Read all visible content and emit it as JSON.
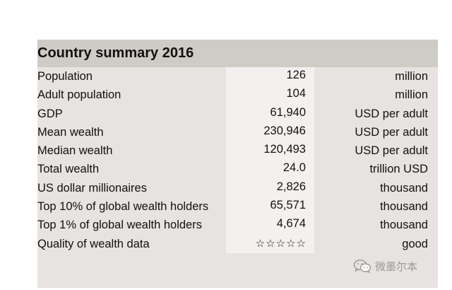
{
  "table": {
    "title": "Country summary 2016",
    "rows": [
      {
        "label": "Population",
        "value": "126",
        "unit": "million"
      },
      {
        "label": "Adult population",
        "value": "104",
        "unit": "million"
      },
      {
        "label": "GDP",
        "value": "61,940",
        "unit": "USD per adult"
      },
      {
        "label": "Mean wealth",
        "value": "230,946",
        "unit": "USD per adult"
      },
      {
        "label": "Median wealth",
        "value": "120,493",
        "unit": "USD per adult"
      },
      {
        "label": "Total wealth",
        "value": "24.0",
        "unit": "trillion USD"
      },
      {
        "label": "US dollar millionaires",
        "value": "2,826",
        "unit": "thousand"
      },
      {
        "label": "Top 10% of global wealth holders",
        "value": "65,571",
        "unit": "thousand"
      },
      {
        "label": "Top 1% of global wealth holders",
        "value": "4,674",
        "unit": "thousand"
      },
      {
        "label": "Quality of wealth data",
        "value": "☆☆☆☆☆",
        "unit": "good"
      }
    ]
  },
  "watermark": {
    "text": "微墨尔本",
    "icon": "wechat-icon"
  },
  "colors": {
    "title_bar": "#cfcbc5",
    "card_bg": "#e7e3e0",
    "value_column_bg": "#f3f1ef"
  }
}
